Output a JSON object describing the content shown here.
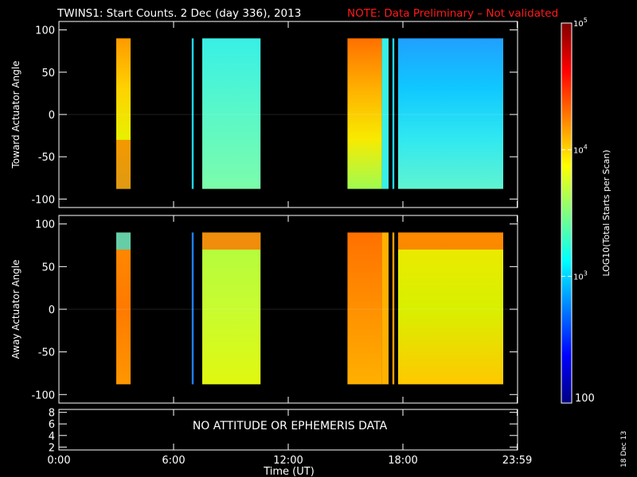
{
  "title": "TWINS1: Start Counts.  2 Dec (day 336), 2013",
  "note": "NOTE: Data Preliminary – Not validated",
  "colors": {
    "background": "#000000",
    "axes": "#ffffff",
    "note": "#ff1a1a"
  },
  "chart_data": [
    {
      "type": "heatmap",
      "panel": "top",
      "ylabel": "Toward Actuator Angle",
      "ylim": [
        -110,
        110
      ],
      "yticks": [
        100,
        50,
        0,
        -50,
        -100
      ],
      "xlim_hours": [
        0,
        24
      ],
      "data_angle_range": [
        -88,
        90
      ],
      "blocks": [
        {
          "start": 3.0,
          "end": 3.75,
          "colors": [
            "#ff9a00",
            "#ffd200",
            "#e8f000",
            "#b8f52a"
          ],
          "low_edge": "#ff5000"
        },
        {
          "start": 6.95,
          "end": 7.05,
          "colors": [
            "#20d8f0"
          ]
        },
        {
          "start": 7.5,
          "end": 10.55,
          "colors": [
            "#38f0e6",
            "#5af8c8",
            "#7cfcab"
          ]
        },
        {
          "start": 15.1,
          "end": 16.9,
          "colors": [
            "#ff7000",
            "#ffb000",
            "#f8ea00",
            "#a0fc50"
          ]
        },
        {
          "start": 16.9,
          "end": 17.25,
          "colors": [
            "#38f0e6"
          ]
        },
        {
          "start": 17.45,
          "end": 17.55,
          "colors": [
            "#20d8f0"
          ]
        },
        {
          "start": 17.75,
          "end": 23.25,
          "colors": [
            "#20a0ff",
            "#10c8ff",
            "#30e8f0",
            "#60f4d0"
          ]
        }
      ]
    },
    {
      "type": "heatmap",
      "panel": "bottom",
      "ylabel": "Away Actuator Angle",
      "ylim": [
        -110,
        110
      ],
      "yticks": [
        100,
        50,
        0,
        -50,
        -100
      ],
      "xlim_hours": [
        0,
        24
      ],
      "data_angle_range": [
        -88,
        90
      ],
      "blocks": [
        {
          "start": 3.0,
          "end": 3.75,
          "colors": [
            "#ff8a00",
            "#ff7a00",
            "#ff9600"
          ],
          "top_edge": "#40e0d0"
        },
        {
          "start": 6.95,
          "end": 7.05,
          "colors": [
            "#2080ff"
          ]
        },
        {
          "start": 7.5,
          "end": 10.55,
          "colors": [
            "#b0fc40",
            "#c8fc30",
            "#e0f810"
          ],
          "top_edge": "#ff7000"
        },
        {
          "start": 15.1,
          "end": 16.9,
          "colors": [
            "#ff7000",
            "#ff9000",
            "#ffb000"
          ]
        },
        {
          "start": 16.9,
          "end": 17.25,
          "colors": [
            "#ffb000"
          ]
        },
        {
          "start": 17.45,
          "end": 17.55,
          "colors": [
            "#ffa000"
          ]
        },
        {
          "start": 17.75,
          "end": 23.25,
          "colors": [
            "#f0e800",
            "#d8f000",
            "#ffc800"
          ],
          "top_edge": "#ff7000"
        }
      ]
    },
    {
      "type": "table",
      "panel": "ephemeris",
      "ylim": [
        1.5,
        8.5
      ],
      "yticks": [
        8,
        6,
        4,
        2
      ],
      "message": "NO ATTITUDE OR EPHEMERIS DATA"
    }
  ],
  "xaxis": {
    "label": "Time (UT)",
    "ticks": [
      {
        "hour": 0,
        "label": "0:00"
      },
      {
        "hour": 6,
        "label": "6:00"
      },
      {
        "hour": 12,
        "label": "12:00"
      },
      {
        "hour": 18,
        "label": "18:00"
      },
      {
        "hour": 23.98,
        "label": "23:59"
      }
    ]
  },
  "colorbar": {
    "label": "LOG10(Total Starts per Scan)",
    "min_label": "100",
    "ticks": [
      {
        "label": "10",
        "exp": "3",
        "value": 3
      },
      {
        "label": "10",
        "exp": "4",
        "value": 4
      },
      {
        "label": "10",
        "exp": "5",
        "value": 5
      }
    ],
    "range": [
      2,
      5
    ],
    "gradient": [
      "#000080",
      "#0000ff",
      "#0080ff",
      "#00ffff",
      "#80ff80",
      "#ffff00",
      "#ff8000",
      "#ff0000",
      "#800000"
    ]
  },
  "date_stamp": "18 Dec 13"
}
